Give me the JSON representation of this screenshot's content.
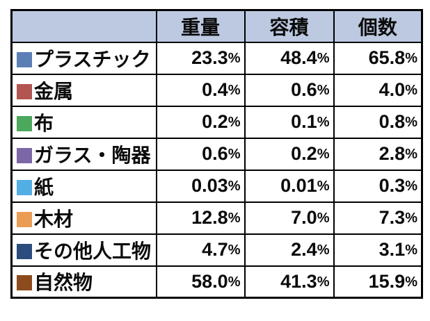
{
  "page": {
    "background": "#ffffff",
    "border_color": "#000000",
    "header_bg": "#BCC9E1"
  },
  "table": {
    "corner_label": ""
  },
  "chart_data": {
    "type": "table",
    "title": "",
    "legend_position": "row-labels",
    "grid": true,
    "categories": [
      "プラスチック",
      "金属",
      "布",
      "ガラス・陶器",
      "紙",
      "木材",
      "その他人工物",
      "自然物"
    ],
    "category_colors": [
      "#5B7FB5",
      "#B25550",
      "#4BA85C",
      "#7C68A6",
      "#53AEE4",
      "#EA9C55",
      "#2B4C7D",
      "#8C4B1D"
    ],
    "series": [
      {
        "name": "重量",
        "values": [
          "23.3%",
          "0.4%",
          "0.2%",
          "0.6%",
          "0.03%",
          "12.8%",
          "4.7%",
          "58.0%"
        ]
      },
      {
        "name": "容積",
        "values": [
          "48.4%",
          "0.6%",
          "0.1%",
          "0.2%",
          "0.01%",
          "7.0%",
          "2.4%",
          "41.3%"
        ]
      },
      {
        "name": "個数",
        "values": [
          "65.8%",
          "4.0%",
          "0.8%",
          "2.8%",
          "0.3%",
          "7.3%",
          "3.1%",
          "15.9%"
        ]
      }
    ]
  }
}
